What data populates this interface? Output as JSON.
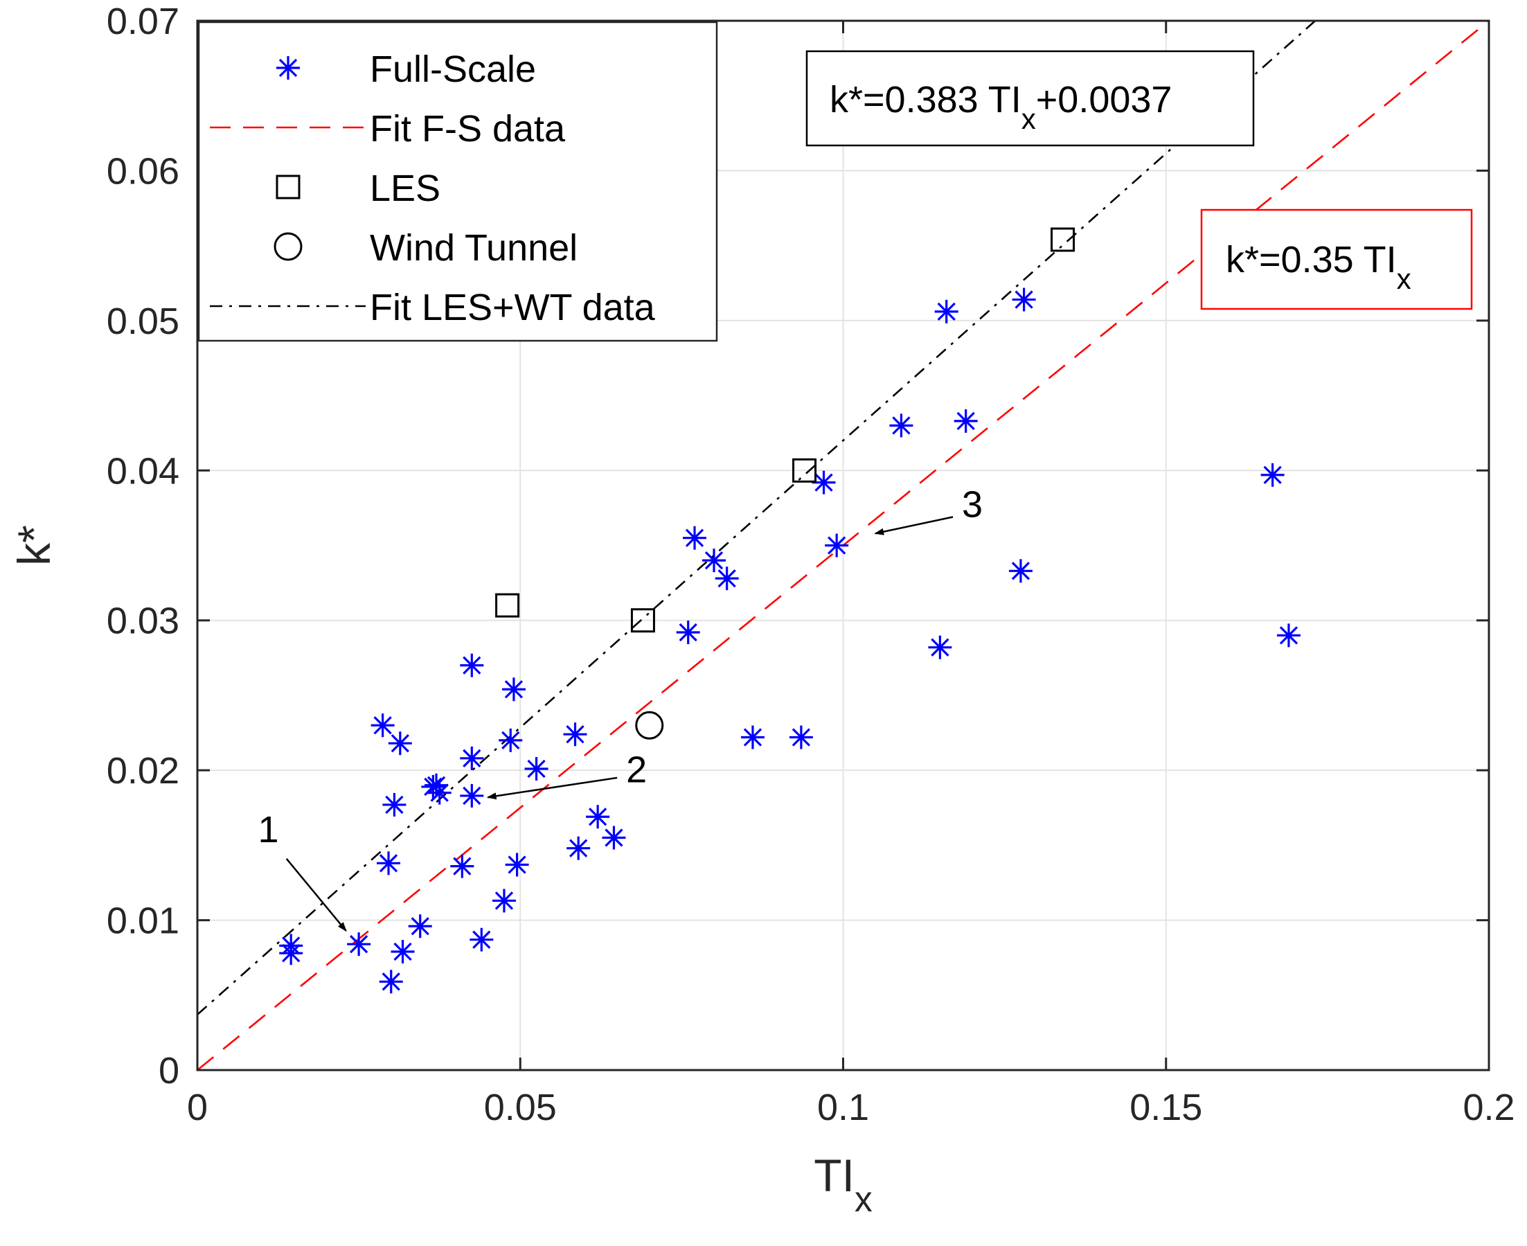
{
  "chart_data": {
    "type": "scatter",
    "xlabel": "TI",
    "xlabel_sub": "x",
    "ylabel": "k*",
    "xlim": [
      0,
      0.2
    ],
    "ylim": [
      0,
      0.07
    ],
    "xticks": [
      0,
      0.05,
      0.1,
      0.15,
      0.2
    ],
    "xtick_labels": [
      "0",
      "0.05",
      "0.1",
      "0.15",
      "0.2"
    ],
    "yticks": [
      0,
      0.01,
      0.02,
      0.03,
      0.04,
      0.05,
      0.06,
      0.07
    ],
    "ytick_labels": [
      "0",
      "0.01",
      "0.02",
      "0.03",
      "0.04",
      "0.05",
      "0.06",
      "0.07"
    ],
    "grid": true,
    "legend_position": "top-left",
    "series": [
      {
        "name": "Full-Scale",
        "marker": "asterisk",
        "color": "#0000ff",
        "x": [
          0.0145,
          0.0145,
          0.025,
          0.03,
          0.0318,
          0.0296,
          0.0287,
          0.0305,
          0.0314,
          0.0345,
          0.0365,
          0.037,
          0.0375,
          0.041,
          0.0425,
          0.0425,
          0.0425,
          0.044,
          0.0475,
          0.0485,
          0.049,
          0.0495,
          0.0525,
          0.0585,
          0.059,
          0.062,
          0.0645,
          0.076,
          0.077,
          0.08,
          0.082,
          0.086,
          0.0935,
          0.097,
          0.099,
          0.109,
          0.116,
          0.119,
          0.115,
          0.1275,
          0.128,
          0.1665,
          0.169
        ],
        "y": [
          0.0083,
          0.0078,
          0.0084,
          0.0059,
          0.0079,
          0.0138,
          0.023,
          0.0177,
          0.0218,
          0.0096,
          0.0189,
          0.019,
          0.0185,
          0.0136,
          0.027,
          0.0208,
          0.0183,
          0.0087,
          0.0113,
          0.022,
          0.0254,
          0.0137,
          0.0201,
          0.0224,
          0.0148,
          0.0169,
          0.0155,
          0.0292,
          0.0355,
          0.034,
          0.0328,
          0.0222,
          0.0222,
          0.0392,
          0.035,
          0.043,
          0.0506,
          0.0433,
          0.0282,
          0.0333,
          0.0514,
          0.0397,
          0.029
        ]
      },
      {
        "name": "Fit F-S data",
        "type": "line",
        "style": "dashed",
        "color": "#ff0000",
        "slope": 0.35,
        "intercept": 0,
        "x": [
          0,
          0.2
        ]
      },
      {
        "name": "LES",
        "marker": "square",
        "color": "#000000",
        "x": [
          0.048,
          0.069,
          0.094,
          0.134
        ],
        "y": [
          0.031,
          0.03,
          0.04,
          0.0554
        ]
      },
      {
        "name": "Wind Tunnel",
        "marker": "circle",
        "color": "#000000",
        "x": [
          0.07
        ],
        "y": [
          0.023
        ]
      },
      {
        "name": "Fit LES+WT data",
        "type": "line",
        "style": "dash-dot",
        "color": "#000000",
        "slope": 0.383,
        "intercept": 0.0037,
        "x": [
          0,
          0.2
        ]
      }
    ],
    "annotations": [
      {
        "label": "k*=0.383 TI",
        "sub": "x",
        "suffix": "+0.0037",
        "border_color": "#000000",
        "position": "top-right"
      },
      {
        "label": "k*=0.35 TI",
        "sub": "x",
        "suffix": "",
        "border_color": "#ff0000",
        "position": "right"
      }
    ],
    "arrows": [
      {
        "label": "1",
        "text_x": 0.011,
        "text_y": 0.0152,
        "from_x": 0.0138,
        "from_y": 0.0141,
        "to_x": 0.023,
        "to_y": 0.0093
      },
      {
        "label": "2",
        "text_x": 0.068,
        "text_y": 0.0192,
        "from_x": 0.065,
        "from_y": 0.0195,
        "to_x": 0.045,
        "to_y": 0.0182
      },
      {
        "label": "3",
        "text_x": 0.12,
        "text_y": 0.0369,
        "from_x": 0.117,
        "from_y": 0.0369,
        "to_x": 0.105,
        "to_y": 0.0358
      }
    ]
  }
}
